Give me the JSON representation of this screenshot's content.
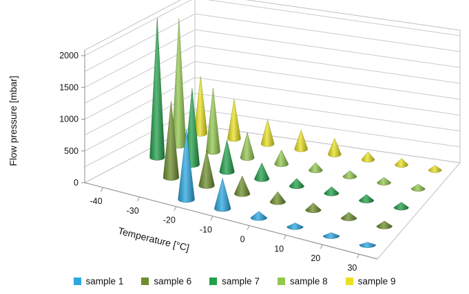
{
  "chart_data": {
    "type": "bar",
    "title": "",
    "xlabel": "Temperature [°C]",
    "ylabel": "",
    "zlabel": "Flow pressure [mbar]",
    "x_categories": [
      "-40",
      "-30",
      "-20",
      "-10",
      "0",
      "10",
      "20",
      "30"
    ],
    "z_ticks": [
      "0",
      "500",
      "1000",
      "1500",
      "2000"
    ],
    "zlim": [
      0,
      2000
    ],
    "grid": true,
    "legend_position": "bottom",
    "marker": "cone",
    "series": [
      {
        "name": "sample 1",
        "color": "#2aa7e0",
        "values": [
          null,
          null,
          1100,
          480,
          100,
          60,
          50,
          40
        ]
      },
      {
        "name": "sample 6",
        "color": "#6e8e2c",
        "values": [
          null,
          1200,
          560,
          280,
          160,
          110,
          90,
          80
        ]
      },
      {
        "name": "sample 7",
        "color": "#22a04a",
        "values": [
          2200,
          1200,
          500,
          250,
          120,
          100,
          90,
          80
        ]
      },
      {
        "name": "sample 8",
        "color": "#93c74f",
        "values": [
          2000,
          1000,
          400,
          220,
          120,
          90,
          80,
          70
        ]
      },
      {
        "name": "sample 9",
        "color": "#e8e022",
        "values": [
          900,
          620,
          380,
          300,
          250,
          120,
          100,
          70
        ]
      }
    ]
  }
}
